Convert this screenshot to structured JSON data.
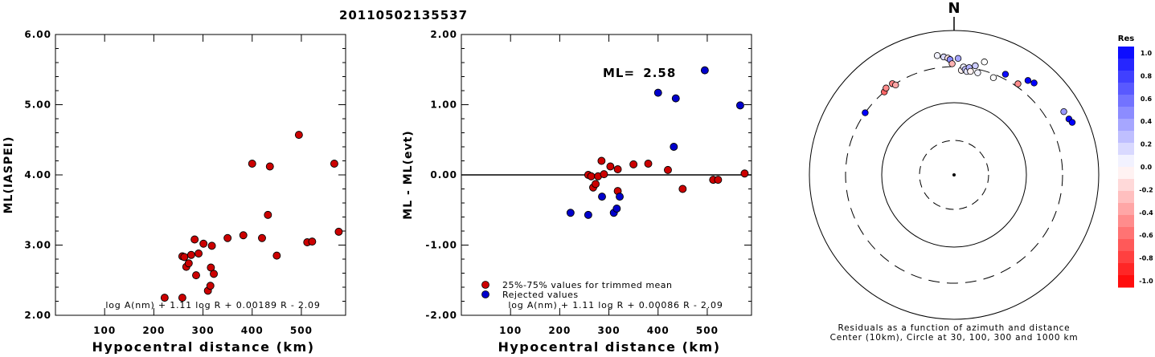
{
  "title": "20110502135537",
  "chart_data": [
    {
      "type": "scatter",
      "ylabel": "ML(IASPEI)",
      "xlabel": "Hypocentral distance (km)",
      "xticks": [
        "100",
        "200",
        "300",
        "400",
        "500"
      ],
      "yticks": [
        "2.00",
        "3.00",
        "4.00",
        "5.00",
        "6.00"
      ],
      "xlim": [
        0,
        590
      ],
      "ylim": [
        2.0,
        6.0
      ],
      "formula": "log A(nm) + 1.11 log R + 0.00189 R - 2.09",
      "point_color": "#cc0000",
      "points": [
        [
          222,
          2.25
        ],
        [
          258,
          2.25
        ],
        [
          258,
          2.84
        ],
        [
          262,
          2.83
        ],
        [
          266,
          2.69
        ],
        [
          271,
          2.74
        ],
        [
          276,
          2.86
        ],
        [
          283,
          3.08
        ],
        [
          286,
          2.57
        ],
        [
          291,
          2.88
        ],
        [
          301,
          3.02
        ],
        [
          310,
          2.35
        ],
        [
          315,
          2.42
        ],
        [
          316,
          2.68
        ],
        [
          318,
          2.99
        ],
        [
          322,
          2.59
        ],
        [
          350,
          3.1
        ],
        [
          382,
          3.14
        ],
        [
          400,
          4.16
        ],
        [
          420,
          3.1
        ],
        [
          432,
          3.43
        ],
        [
          436,
          4.12
        ],
        [
          450,
          2.85
        ],
        [
          495,
          4.57
        ],
        [
          512,
          3.04
        ],
        [
          522,
          3.05
        ],
        [
          567,
          4.16
        ],
        [
          576,
          3.19
        ]
      ]
    },
    {
      "type": "scatter",
      "ylabel": "ML - ML(evt)",
      "xlabel": "Hypocentral distance (km)",
      "xticks": [
        "100",
        "200",
        "300",
        "400",
        "500"
      ],
      "yticks": [
        "-2.00",
        "-1.00",
        "0.00",
        "1.00",
        "2.00"
      ],
      "xlim": [
        0,
        590
      ],
      "ylim": [
        -2.0,
        2.0
      ],
      "ml_label": "ML=",
      "ml_value": "2.58",
      "formula": "log A(nm) + 1.11 log R + 0.00086 R - 2.09",
      "legend": [
        {
          "label": "25%-75% values for trimmed mean",
          "color": "#cc0000"
        },
        {
          "label": "Rejected values",
          "color": "#0000cc"
        }
      ],
      "series": [
        {
          "name": "25%-75% values for trimmed mean",
          "color": "#cc0000",
          "points": [
            [
              258,
              0.0
            ],
            [
              264,
              -0.02
            ],
            [
              268,
              -0.18
            ],
            [
              273,
              -0.13
            ],
            [
              278,
              -0.02
            ],
            [
              285,
              0.2
            ],
            [
              290,
              0.01
            ],
            [
              303,
              0.12
            ],
            [
              318,
              0.08
            ],
            [
              318,
              -0.23
            ],
            [
              350,
              0.15
            ],
            [
              380,
              0.16
            ],
            [
              420,
              0.07
            ],
            [
              450,
              -0.2
            ],
            [
              512,
              -0.07
            ],
            [
              522,
              -0.07
            ],
            [
              576,
              0.02
            ]
          ]
        },
        {
          "name": "Rejected values",
          "color": "#0000cc",
          "points": [
            [
              222,
              -0.54
            ],
            [
              258,
              -0.57
            ],
            [
              286,
              -0.31
            ],
            [
              310,
              -0.54
            ],
            [
              316,
              -0.48
            ],
            [
              322,
              -0.31
            ],
            [
              400,
              1.17
            ],
            [
              432,
              0.4
            ],
            [
              436,
              1.09
            ],
            [
              495,
              1.49
            ],
            [
              567,
              0.99
            ]
          ]
        }
      ]
    },
    {
      "type": "polar-scatter",
      "north_label": "N",
      "caption_line1": "Residuals as a function of azimuth and distance",
      "caption_line2": "Center (10km), Circle at 30, 100, 300 and 1000 km",
      "colorbar": {
        "title": "Res",
        "ticks": [
          "1.0",
          "0.8",
          "0.6",
          "0.4",
          "0.2",
          "0.0",
          "-0.2",
          "-0.4",
          "-0.6",
          "-0.8",
          "-1.0"
        ],
        "positive_color": "#0000ff",
        "negative_color": "#ff0000"
      },
      "stations": [
        {
          "az": 305,
          "dist": 300,
          "res": 1.1
        },
        {
          "az": 320,
          "dist": 300,
          "res": -0.6
        },
        {
          "az": 322,
          "dist": 320,
          "res": -0.45
        },
        {
          "az": 326,
          "dist": 318,
          "res": -0.5
        },
        {
          "az": 327,
          "dist": 290,
          "res": -0.35
        },
        {
          "az": 352,
          "dist": 450,
          "res": 0.05
        },
        {
          "az": 355,
          "dist": 420,
          "res": 0.15
        },
        {
          "az": 357,
          "dist": 400,
          "res": -0.1
        },
        {
          "az": 358,
          "dist": 380,
          "res": 0.45
        },
        {
          "az": 359,
          "dist": 330,
          "res": -0.3
        },
        {
          "az": 2,
          "dist": 395,
          "res": 0.35
        },
        {
          "az": 4,
          "dist": 270,
          "res": -0.05
        },
        {
          "az": 5,
          "dist": 300,
          "res": 0.05
        },
        {
          "az": 6,
          "dist": 280,
          "res": 0.25
        },
        {
          "az": 7,
          "dist": 265,
          "res": 0.1
        },
        {
          "az": 8,
          "dist": 300,
          "res": 0.3
        },
        {
          "az": 9,
          "dist": 270,
          "res": -0.05
        },
        {
          "az": 11,
          "dist": 330,
          "res": 0.2
        },
        {
          "az": 13,
          "dist": 270,
          "res": 0.05
        },
        {
          "az": 15,
          "dist": 400,
          "res": 0.0
        },
        {
          "az": 22,
          "dist": 270,
          "res": 0.0
        },
        {
          "az": 27,
          "dist": 350,
          "res": 0.95
        },
        {
          "az": 35,
          "dist": 330,
          "res": -0.45
        },
        {
          "az": 38,
          "dist": 440,
          "res": 1.0
        },
        {
          "az": 41,
          "dist": 470,
          "res": 1.05
        },
        {
          "az": 60,
          "dist": 550,
          "res": 0.4
        },
        {
          "az": 64,
          "dist": 570,
          "res": 1.1
        },
        {
          "az": 66,
          "dist": 600,
          "res": 1.1
        }
      ]
    }
  ]
}
